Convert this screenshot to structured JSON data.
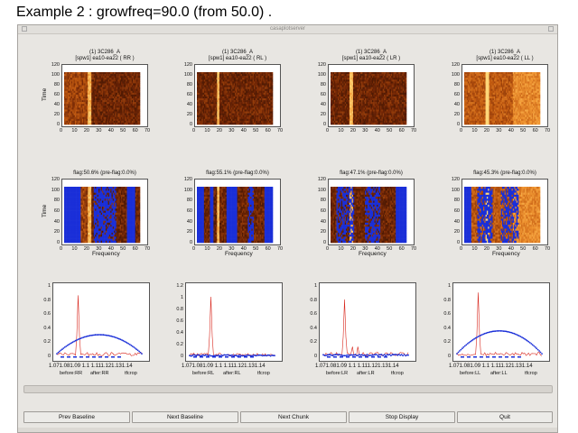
{
  "caption": "Example 2 :  growfreq=90.0 (from 50.0) .",
  "window": {
    "title": "casaplotserver"
  },
  "row1": {
    "titles": [
      [
        "(1) 3C286_A",
        "[spw1] ea10-ea22  ( RR )"
      ],
      [
        "(1) 3C286_A",
        "[spw1] ea10-ea22  ( RL )"
      ],
      [
        "(1) 3C286_A",
        "[spw1] ea10-ea22  ( LR )"
      ],
      [
        "(1) 3C286_A",
        "[spw1] ea10-ea22  ( LL )"
      ]
    ],
    "y_ticks": [
      "120",
      "100",
      "80",
      "60",
      "40",
      "20",
      "0"
    ],
    "x_ticks": [
      "0",
      "10",
      "20",
      "30",
      "40",
      "50",
      "60",
      "70"
    ],
    "ylabel": "Time"
  },
  "row2": {
    "titles": [
      "flag:50.6% (pre-flag:0.0%)",
      "flag:55.1% (pre-flag:0.0%)",
      "flag:47.1% (pre-flag:0.0%)",
      "flag:45.3% (pre-flag:0.0%)"
    ],
    "y_ticks": [
      "120",
      "100",
      "80",
      "60",
      "40",
      "20",
      "0"
    ],
    "x_ticks": [
      "0",
      "10",
      "20",
      "30",
      "40",
      "50",
      "60",
      "70"
    ],
    "xlabel": "Frequency",
    "ylabel": "Time"
  },
  "row3": {
    "y_ticks": [
      [
        "1",
        "0.8",
        "0.6",
        "0.4",
        "0.2",
        "0"
      ],
      [
        "1.2",
        "1",
        "0.8",
        "0.6",
        "0.4",
        "0.2",
        "0"
      ],
      [
        "1",
        "0.8",
        "0.6",
        "0.4",
        "0.2",
        "0"
      ],
      [
        "1",
        "0.8",
        "0.6",
        "0.4",
        "0.2",
        "0"
      ]
    ],
    "x_ticks": "1.071.081.09 1.1 1.111.121.131.14",
    "legends": [
      [
        "before:RR",
        "after:RR",
        "tfcrop"
      ],
      [
        "before:RL",
        "after:RL",
        "tfcrop"
      ],
      [
        "before:LR",
        "after:LR",
        "tfcrop"
      ],
      [
        "before:LL",
        "after:LL",
        "tfcrop"
      ]
    ]
  },
  "buttons": {
    "prev": "Prev Baseline",
    "next": "Next Baseline",
    "chunk": "Next Chunk",
    "stop": "Stop Display",
    "quit": "Quit"
  },
  "colors": {
    "flagged": "#1a2fd8",
    "heat_dark": "#2a0f02",
    "heat_mid": "#c25a10",
    "heat_bright": "#ffd070",
    "before_line": "#d8261c",
    "after_line": "#1a2fd8"
  }
}
